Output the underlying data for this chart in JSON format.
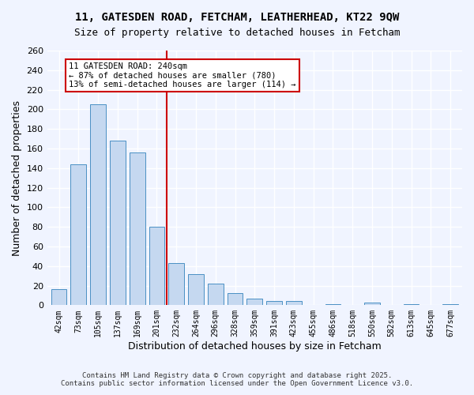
{
  "title1": "11, GATESDEN ROAD, FETCHAM, LEATHERHEAD, KT22 9QW",
  "title2": "Size of property relative to detached houses in Fetcham",
  "xlabel": "Distribution of detached houses by size in Fetcham",
  "ylabel": "Number of detached properties",
  "categories": [
    "42sqm",
    "73sqm",
    "105sqm",
    "137sqm",
    "169sqm",
    "201sqm",
    "232sqm",
    "264sqm",
    "296sqm",
    "328sqm",
    "359sqm",
    "391sqm",
    "423sqm",
    "455sqm",
    "486sqm",
    "518sqm",
    "550sqm",
    "582sqm",
    "613sqm",
    "645sqm",
    "677sqm"
  ],
  "values": [
    16,
    144,
    205,
    168,
    156,
    80,
    43,
    32,
    22,
    12,
    7,
    4,
    4,
    0,
    1,
    0,
    3,
    0,
    1,
    0,
    1
  ],
  "bar_color": "#c5d8f0",
  "bar_edge_color": "#4a90c4",
  "reference_line_x": 6,
  "annotation_text": "11 GATESDEN ROAD: 240sqm\n← 87% of detached houses are smaller (780)\n13% of semi-detached houses are larger (114) →",
  "annotation_box_color": "#ffffff",
  "annotation_box_edge_color": "#cc0000",
  "ylim": [
    0,
    260
  ],
  "yticks": [
    0,
    20,
    40,
    60,
    80,
    100,
    120,
    140,
    160,
    180,
    200,
    220,
    240,
    260
  ],
  "bg_color": "#f0f4ff",
  "grid_color": "#ffffff",
  "footer1": "Contains HM Land Registry data © Crown copyright and database right 2025.",
  "footer2": "Contains public sector information licensed under the Open Government Licence v3.0."
}
